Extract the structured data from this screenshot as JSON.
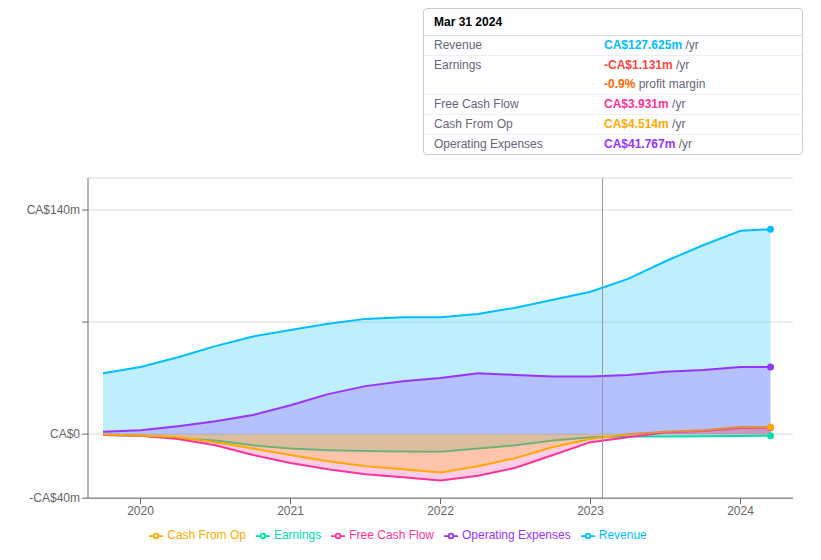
{
  "chart_data": {
    "type": "area",
    "x": [
      2019.75,
      2020.0,
      2020.25,
      2020.5,
      2020.75,
      2021.0,
      2021.25,
      2021.5,
      2021.75,
      2022.0,
      2022.25,
      2022.5,
      2022.75,
      2023.0,
      2023.25,
      2023.5,
      2023.75,
      2024.0,
      2024.2
    ],
    "xlim": [
      2019.65,
      2024.35
    ],
    "xticks": [
      2020,
      2021,
      2022,
      2023,
      2024
    ],
    "ylim": [
      -40,
      160
    ],
    "yticks": [
      {
        "value": 140,
        "label": "CA$140m"
      },
      {
        "value": 70,
        "label": null
      },
      {
        "value": 0,
        "label": "CA$0"
      },
      {
        "value": -40,
        "label": "-CA$40m"
      }
    ],
    "grid": true,
    "legend": "bottom",
    "vlines": [
      2023.08
    ],
    "series": [
      {
        "name": "Revenue",
        "color": "#00bfff",
        "values": [
          38,
          42,
          48,
          55,
          61,
          65,
          69,
          72,
          73,
          73,
          75,
          79,
          84,
          89,
          97,
          108,
          118,
          127,
          128
        ]
      },
      {
        "name": "Earnings",
        "color": "#00ddaa",
        "values": [
          -0.5,
          -1,
          -2.5,
          -4,
          -7,
          -9,
          -10,
          -10.5,
          -10.8,
          -11,
          -9,
          -7,
          -4,
          -2,
          -1.5,
          -1.5,
          -1.3,
          -1.1,
          -1
        ]
      },
      {
        "name": "Free Cash Flow",
        "color": "#ff3399",
        "values": [
          -0.5,
          -1,
          -3,
          -7,
          -13,
          -18,
          -22,
          -25,
          -27,
          -29,
          -26,
          -21,
          -13,
          -5,
          -2,
          1,
          2,
          3.9,
          4
        ]
      },
      {
        "name": "Cash From Op",
        "color": "#ffaa00",
        "values": [
          -0.3,
          -0.8,
          -2,
          -5,
          -9,
          -13,
          -17,
          -20,
          -22,
          -24,
          -20,
          -15,
          -8,
          -3,
          0,
          1.5,
          2.5,
          4.5,
          4.5
        ]
      },
      {
        "name": "Operating Expenses",
        "color": "#9933ff",
        "values": [
          1.5,
          2.5,
          5,
          8,
          12,
          18,
          25,
          30,
          33,
          35,
          38,
          37,
          36,
          36,
          37,
          39,
          40,
          42,
          42
        ]
      }
    ],
    "info_box": {
      "title": "Mar 31 2024",
      "rows": [
        {
          "label": "Revenue",
          "value": "CA$127.625m",
          "color": "#00bfff",
          "suffix": " /yr"
        },
        {
          "label": "Earnings",
          "value": "-CA$1.131m",
          "color": "#ff4444",
          "suffix": " /yr"
        },
        {
          "value": "-0.9%",
          "color": "#ff6600",
          "suffix": " profit margin"
        },
        {
          "label": "Free Cash Flow",
          "value": "CA$3.931m",
          "color": "#ff3399",
          "suffix": " /yr"
        },
        {
          "label": "Cash From Op",
          "value": "CA$4.514m",
          "color": "#ffaa00",
          "suffix": " /yr"
        },
        {
          "label": "Operating Expenses",
          "value": "CA$41.767m",
          "color": "#9933ff",
          "suffix": " /yr"
        }
      ]
    }
  }
}
